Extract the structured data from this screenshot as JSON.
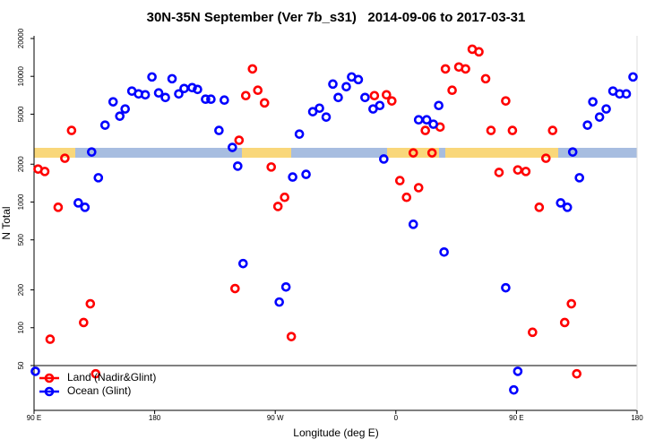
{
  "chart_data": {
    "type": "scatter",
    "title": "30N-35N September (Ver 7b_s31)   2014-09-06 to 2017-03-31",
    "x_label": "Longitude (deg E)",
    "y_label": "N Total",
    "log_y": true,
    "legend": "bottom-left",
    "xlim": [
      90,
      540
    ],
    "ylim": [
      22,
      21000
    ],
    "xticks": [
      {
        "value": 90,
        "label": "90 E"
      },
      180,
      {
        "value": 270,
        "label": "90 W"
      },
      {
        "value": 360,
        "label": "0"
      },
      {
        "value": 450,
        "label": "90 E"
      },
      {
        "value": 540,
        "label": "180"
      }
    ],
    "yticks": [
      50,
      100,
      200,
      500,
      1000,
      2000,
      5000,
      10000,
      20000
    ],
    "series": [
      {
        "name": "Land (Nadir&Glint)",
        "color": "#ff0000",
        "x": [
          93,
          98,
          102,
          108,
          113,
          118,
          127,
          132,
          136,
          240,
          243,
          248,
          253,
          257,
          262,
          267,
          272,
          277,
          282,
          344,
          353,
          357,
          363,
          368,
          373,
          377,
          382,
          387,
          393,
          397,
          402,
          407,
          412,
          417,
          422,
          427,
          431,
          437,
          442,
          447,
          451,
          457,
          462,
          467,
          472,
          477,
          486,
          491,
          495
        ],
        "values": [
          1830,
          1750,
          81,
          908,
          2230,
          3710,
          110,
          155,
          43,
          205,
          3100,
          7020,
          11460,
          7750,
          6150,
          1900,
          922,
          1090,
          85,
          7020,
          7130,
          6370,
          1480,
          1090,
          2460,
          1300,
          3710,
          2460,
          3950,
          11460,
          7750,
          11860,
          11460,
          16440,
          15670,
          9570,
          3710,
          1720,
          6370,
          3710,
          1800,
          1750,
          92,
          908,
          2230,
          3710,
          110,
          155,
          43
        ]
      },
      {
        "name": "Ocean (Glint)",
        "color": "#0000ff",
        "x": [
          91,
          123,
          128,
          133,
          138,
          143,
          149,
          154,
          158,
          163,
          168,
          173,
          178,
          183,
          188,
          193,
          198,
          202,
          208,
          212,
          218,
          222,
          228,
          232,
          238,
          242,
          246,
          273,
          278,
          283,
          288,
          293,
          298,
          303,
          308,
          313,
          317,
          323,
          327,
          332,
          337,
          343,
          348,
          351,
          373,
          377,
          383,
          388,
          392,
          396,
          442,
          448,
          451,
          483,
          488,
          492,
          497,
          503,
          507,
          512,
          517,
          522,
          527,
          532,
          537
        ],
        "values": [
          45,
          984,
          908,
          2500,
          1560,
          4090,
          6270,
          4820,
          5500,
          7630,
          7250,
          7130,
          9890,
          7380,
          6790,
          9570,
          7250,
          8000,
          8130,
          7870,
          6580,
          6580,
          3710,
          6470,
          2720,
          1930,
          324,
          160,
          211,
          1580,
          3470,
          1660,
          5230,
          5580,
          4740,
          8680,
          6790,
          8270,
          9890,
          9420,
          6790,
          5500,
          5860,
          2200,
          665,
          4510,
          4510,
          4160,
          5860,
          400,
          208,
          32,
          45,
          984,
          908,
          2500,
          1560,
          4090,
          6270,
          4740,
          5500,
          7630,
          7250,
          7250,
          9890
        ]
      }
    ]
  }
}
